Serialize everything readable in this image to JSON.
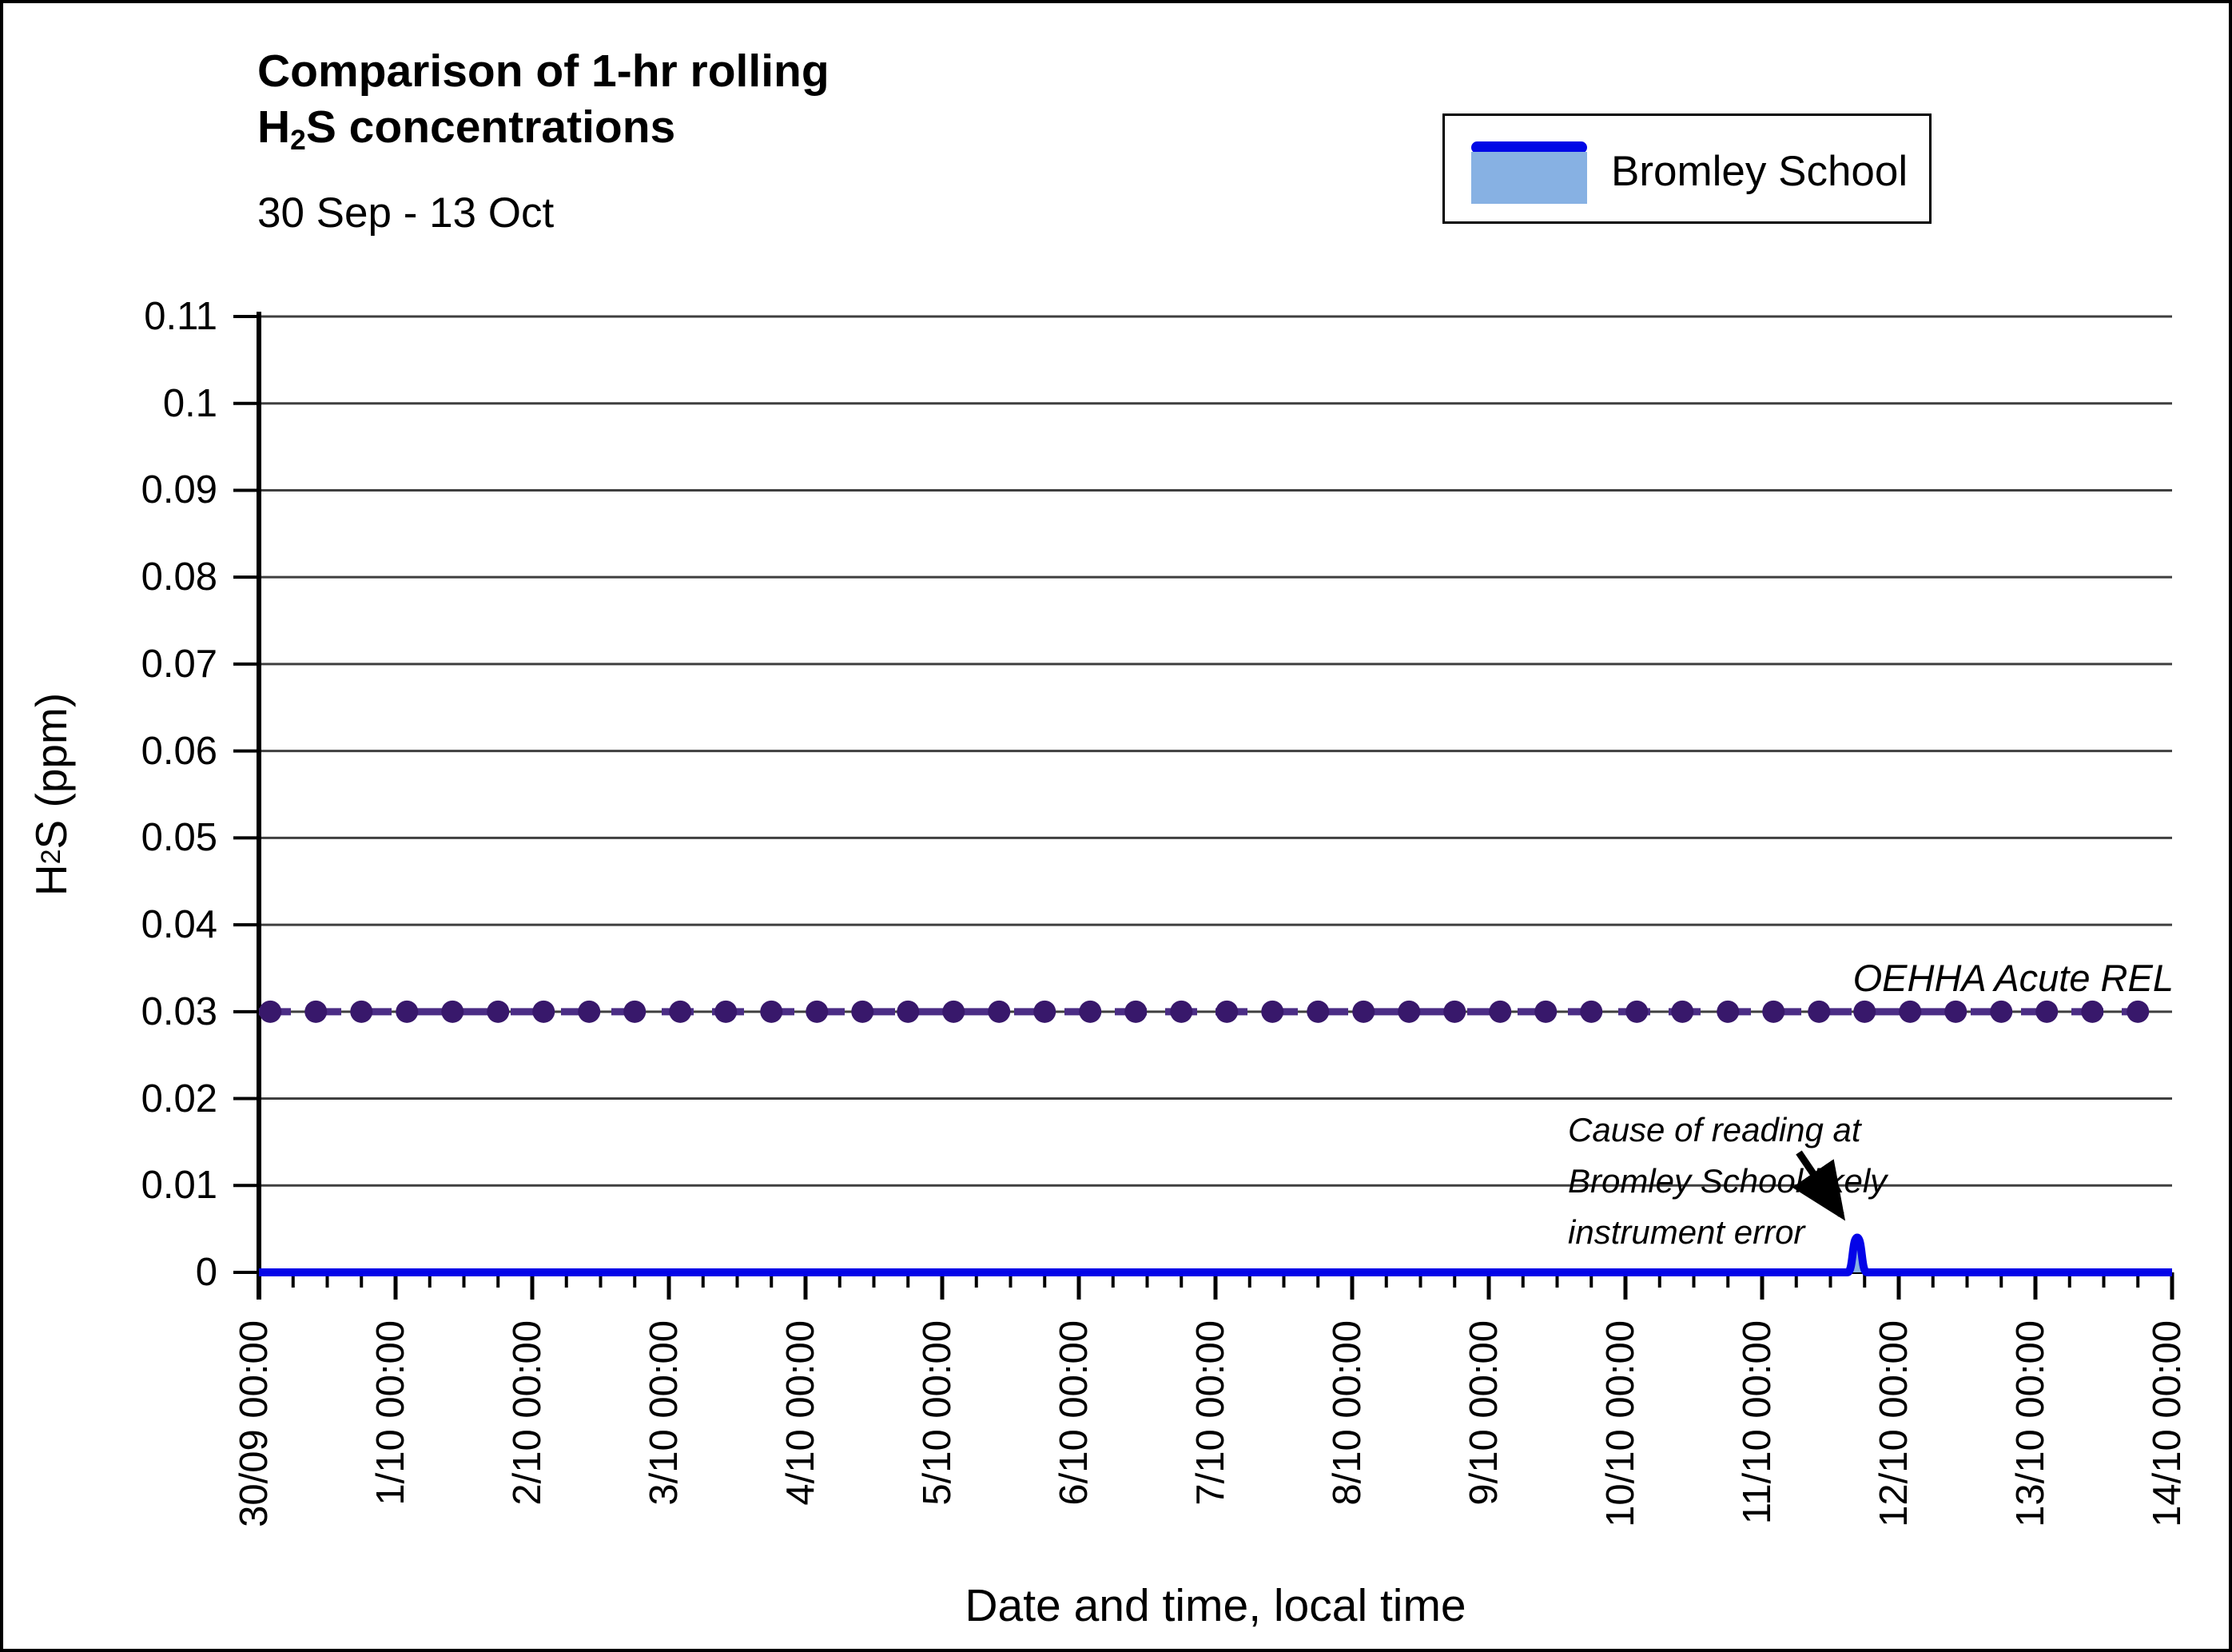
{
  "header": {
    "title_line1": "Comparison of 1-hr rolling",
    "title_line2_parts": {
      "pre": "H",
      "sub": "2",
      "post": "S concentrations"
    },
    "subtitle": "30 Sep - 13 Oct"
  },
  "legend": {
    "label": "Bromley School",
    "line_color": "#0008e6",
    "fill_color": "#87b1e3"
  },
  "chart_data": {
    "type": "line",
    "title": "Comparison of 1-hr rolling H2S concentrations",
    "subtitle": "30 Sep - 13 Oct",
    "xlabel": "Date and time, local time",
    "ylabel": "H2S (ppm)",
    "ylabel_parts": {
      "pre": "H",
      "sub": "2",
      "post": "S (ppm)"
    },
    "ylim": [
      0,
      0.11
    ],
    "y_tick_values": [
      0,
      0.01,
      0.02,
      0.03,
      0.04,
      0.05,
      0.06,
      0.07,
      0.08,
      0.09,
      0.1,
      0.11
    ],
    "y_tick_labels": [
      "0",
      "0.01",
      "0.02",
      "0.03",
      "0.04",
      "0.05",
      "0.06",
      "0.07",
      "0.08",
      "0.09",
      "0.1",
      "0.11"
    ],
    "x_tick_labels": [
      "30/09 00:00",
      "1/10 00:00",
      "2/10 00:00",
      "3/10 00:00",
      "4/10 00:00",
      "5/10 00:00",
      "6/10 00:00",
      "7/10 00:00",
      "8/10 00:00",
      "9/10 00:00",
      "10/10 00:00",
      "11/10 00:00",
      "12/10 00:00",
      "13/10 00:00",
      "14/10 00:00"
    ],
    "x_total_hours": 336,
    "x_minor_tick_hours": 6,
    "grid": "horizontal-on",
    "legend_position": "top-right",
    "series": [
      {
        "name": "Bromley School",
        "type": "area-line",
        "color": "#0404e8",
        "fill": "#87b1e3",
        "baseline_ppm": 0,
        "description": "flat at 0.000 ppm for entire period except one narrow spike",
        "spike": {
          "time_label": "11/10 ~16:40",
          "hours_from_start": 280.7,
          "peak_ppm": 0.004,
          "width_hours": 3.4
        }
      },
      {
        "name": "OEHHA Acute REL",
        "type": "reference-line",
        "value_ppm": 0.03,
        "style": "dashed-with-circle-markers",
        "line_color": "#4b2d85",
        "marker_color": "#38186b",
        "marker_offset_hours": 2,
        "marker_interval_hours": 8,
        "label": "OEHHA Acute REL"
      }
    ],
    "annotation": {
      "lines": [
        "Cause of reading at",
        "Bromley School likely",
        "instrument error"
      ],
      "arrow_target": "spike"
    }
  }
}
